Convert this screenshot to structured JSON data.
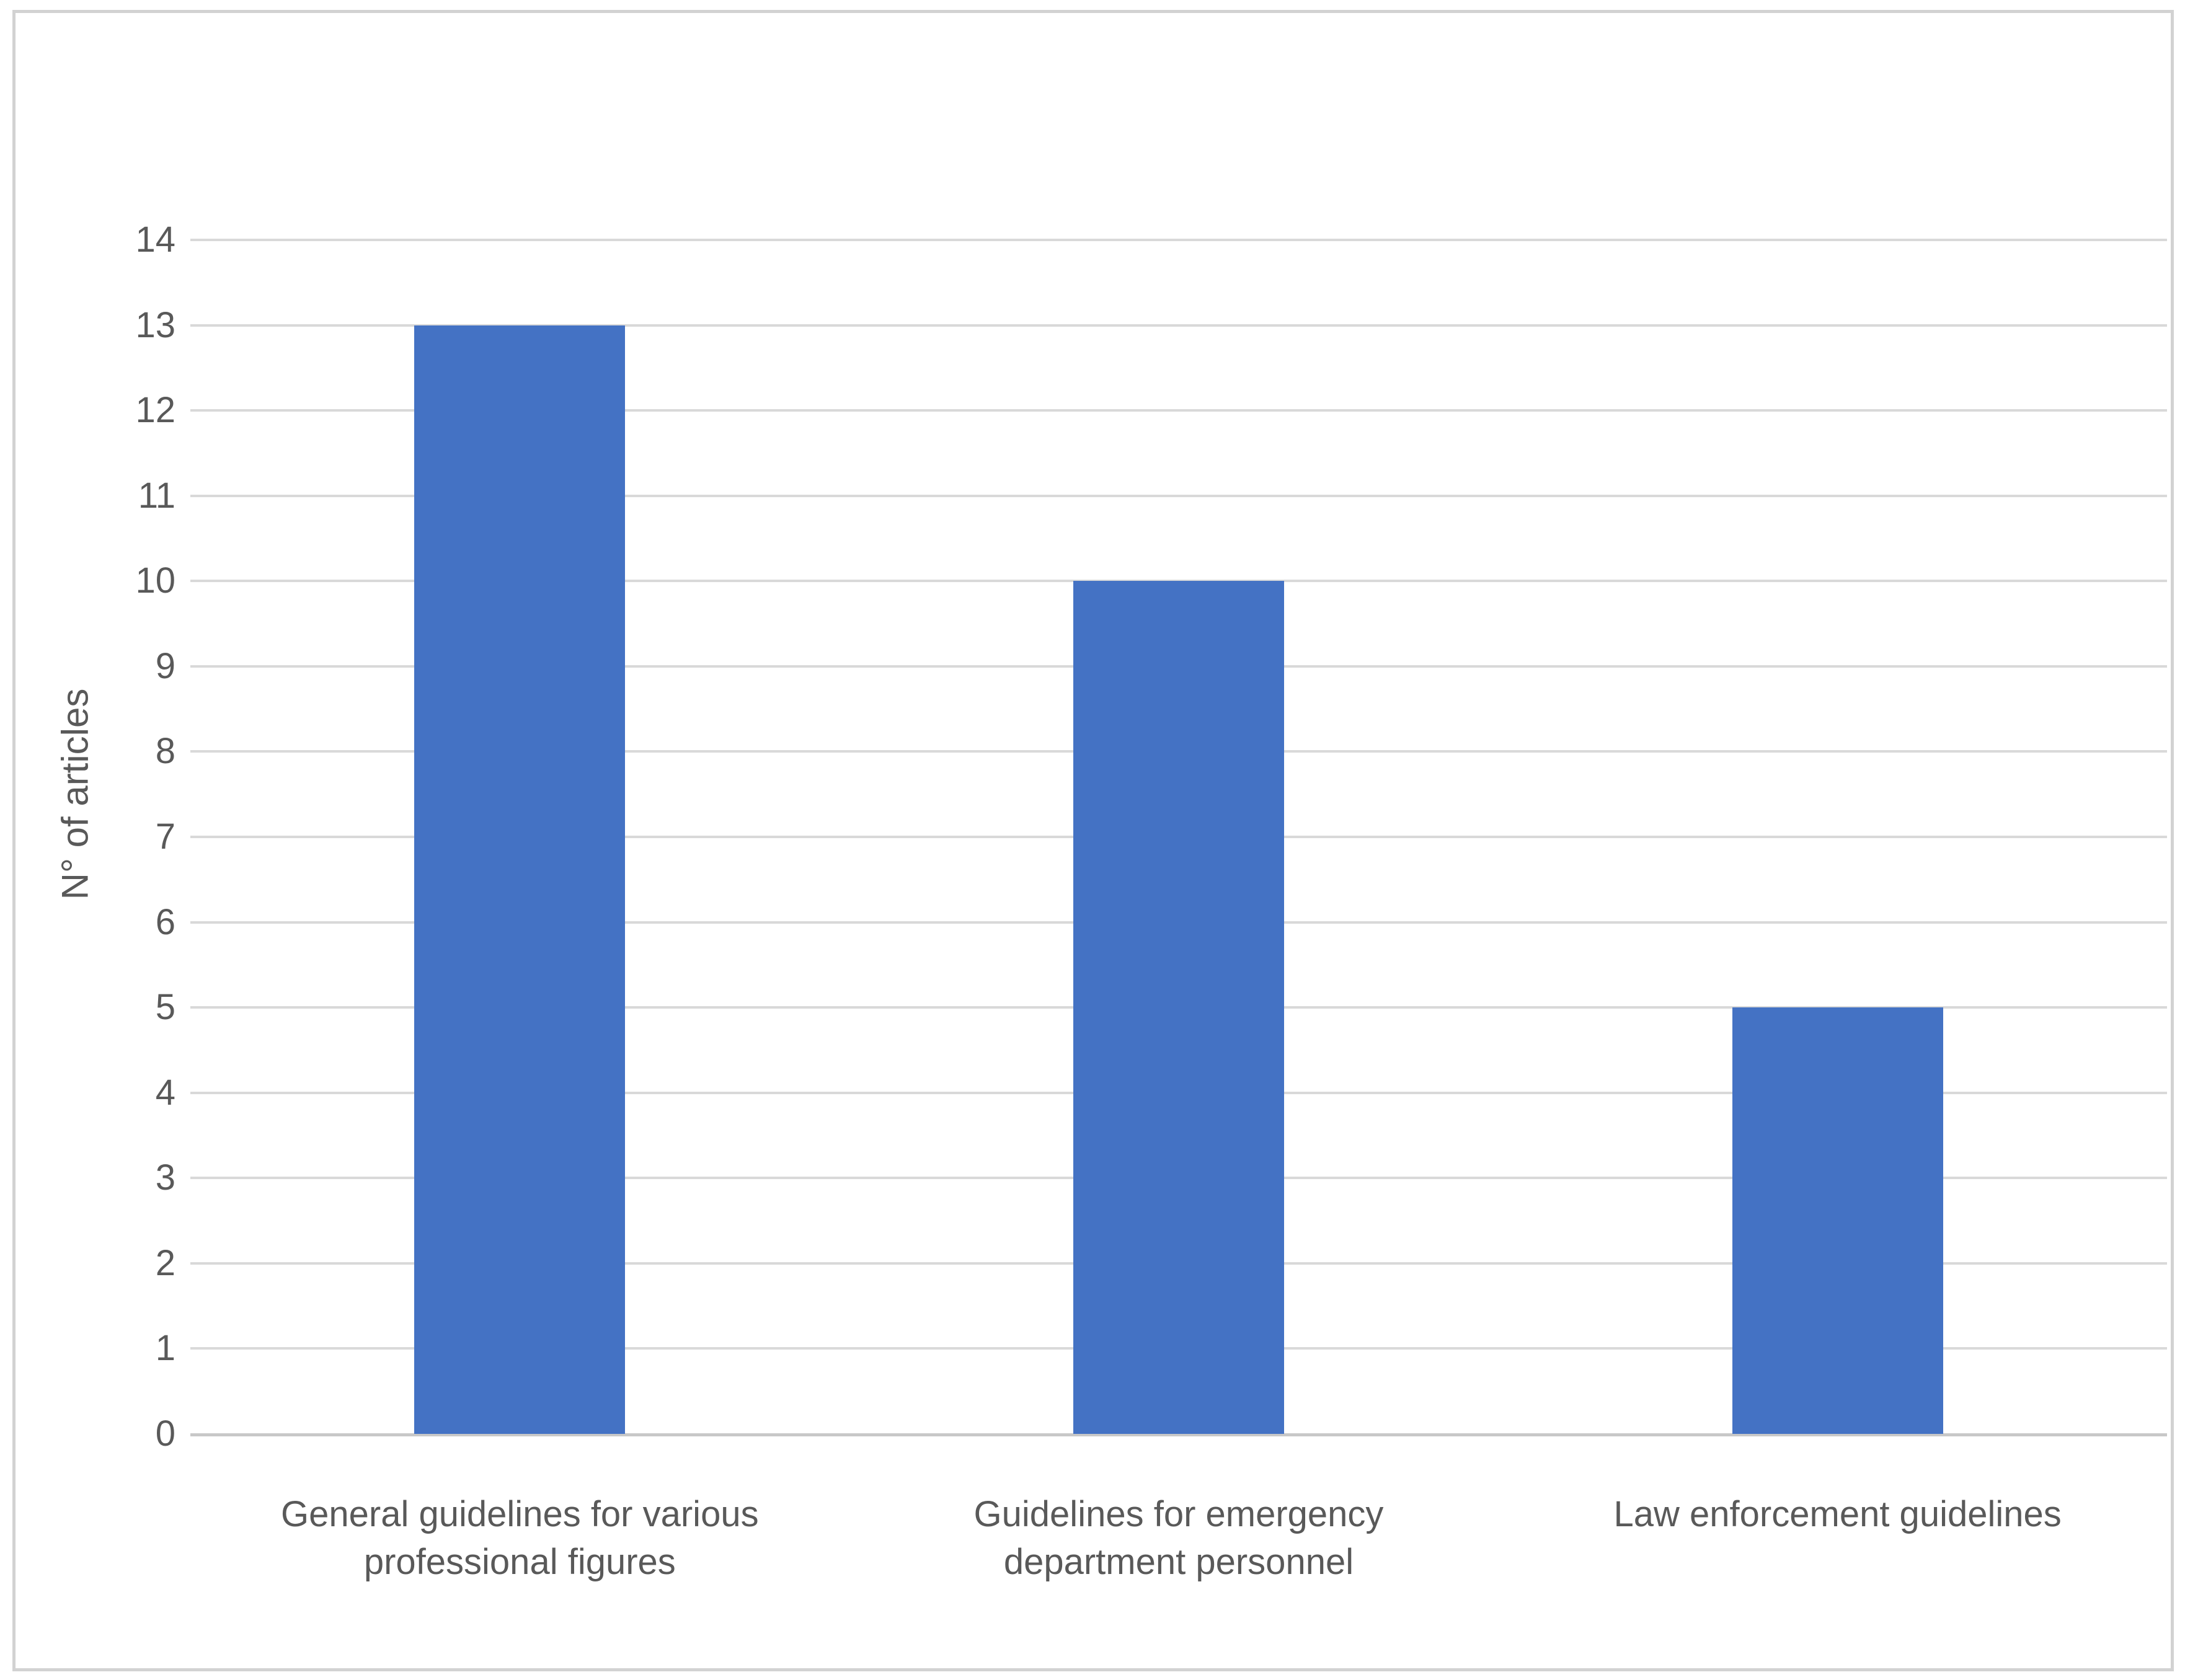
{
  "chart_data": {
    "type": "bar",
    "categories": [
      "General guidelines for various professional figures",
      "Guidelines for emergency department personnel",
      "Law enforcement guidelines"
    ],
    "values": [
      13,
      10,
      5
    ],
    "title": "",
    "xlabel": "",
    "ylabel": "N° of articles",
    "ylim": [
      0,
      14
    ],
    "ytick_step": 1,
    "ytick_labels": [
      "0",
      "1",
      "2",
      "3",
      "4",
      "5",
      "6",
      "7",
      "8",
      "9",
      "10",
      "11",
      "12",
      "13",
      "14"
    ],
    "grid": true,
    "legend": "none",
    "colors": {
      "bar": "#4472C4",
      "gridline": "#D9D9D9",
      "axis_line": "#C8C8C8",
      "text": "#595959",
      "background": "#FFFFFF",
      "frame_border": "#D2D2D2"
    }
  }
}
